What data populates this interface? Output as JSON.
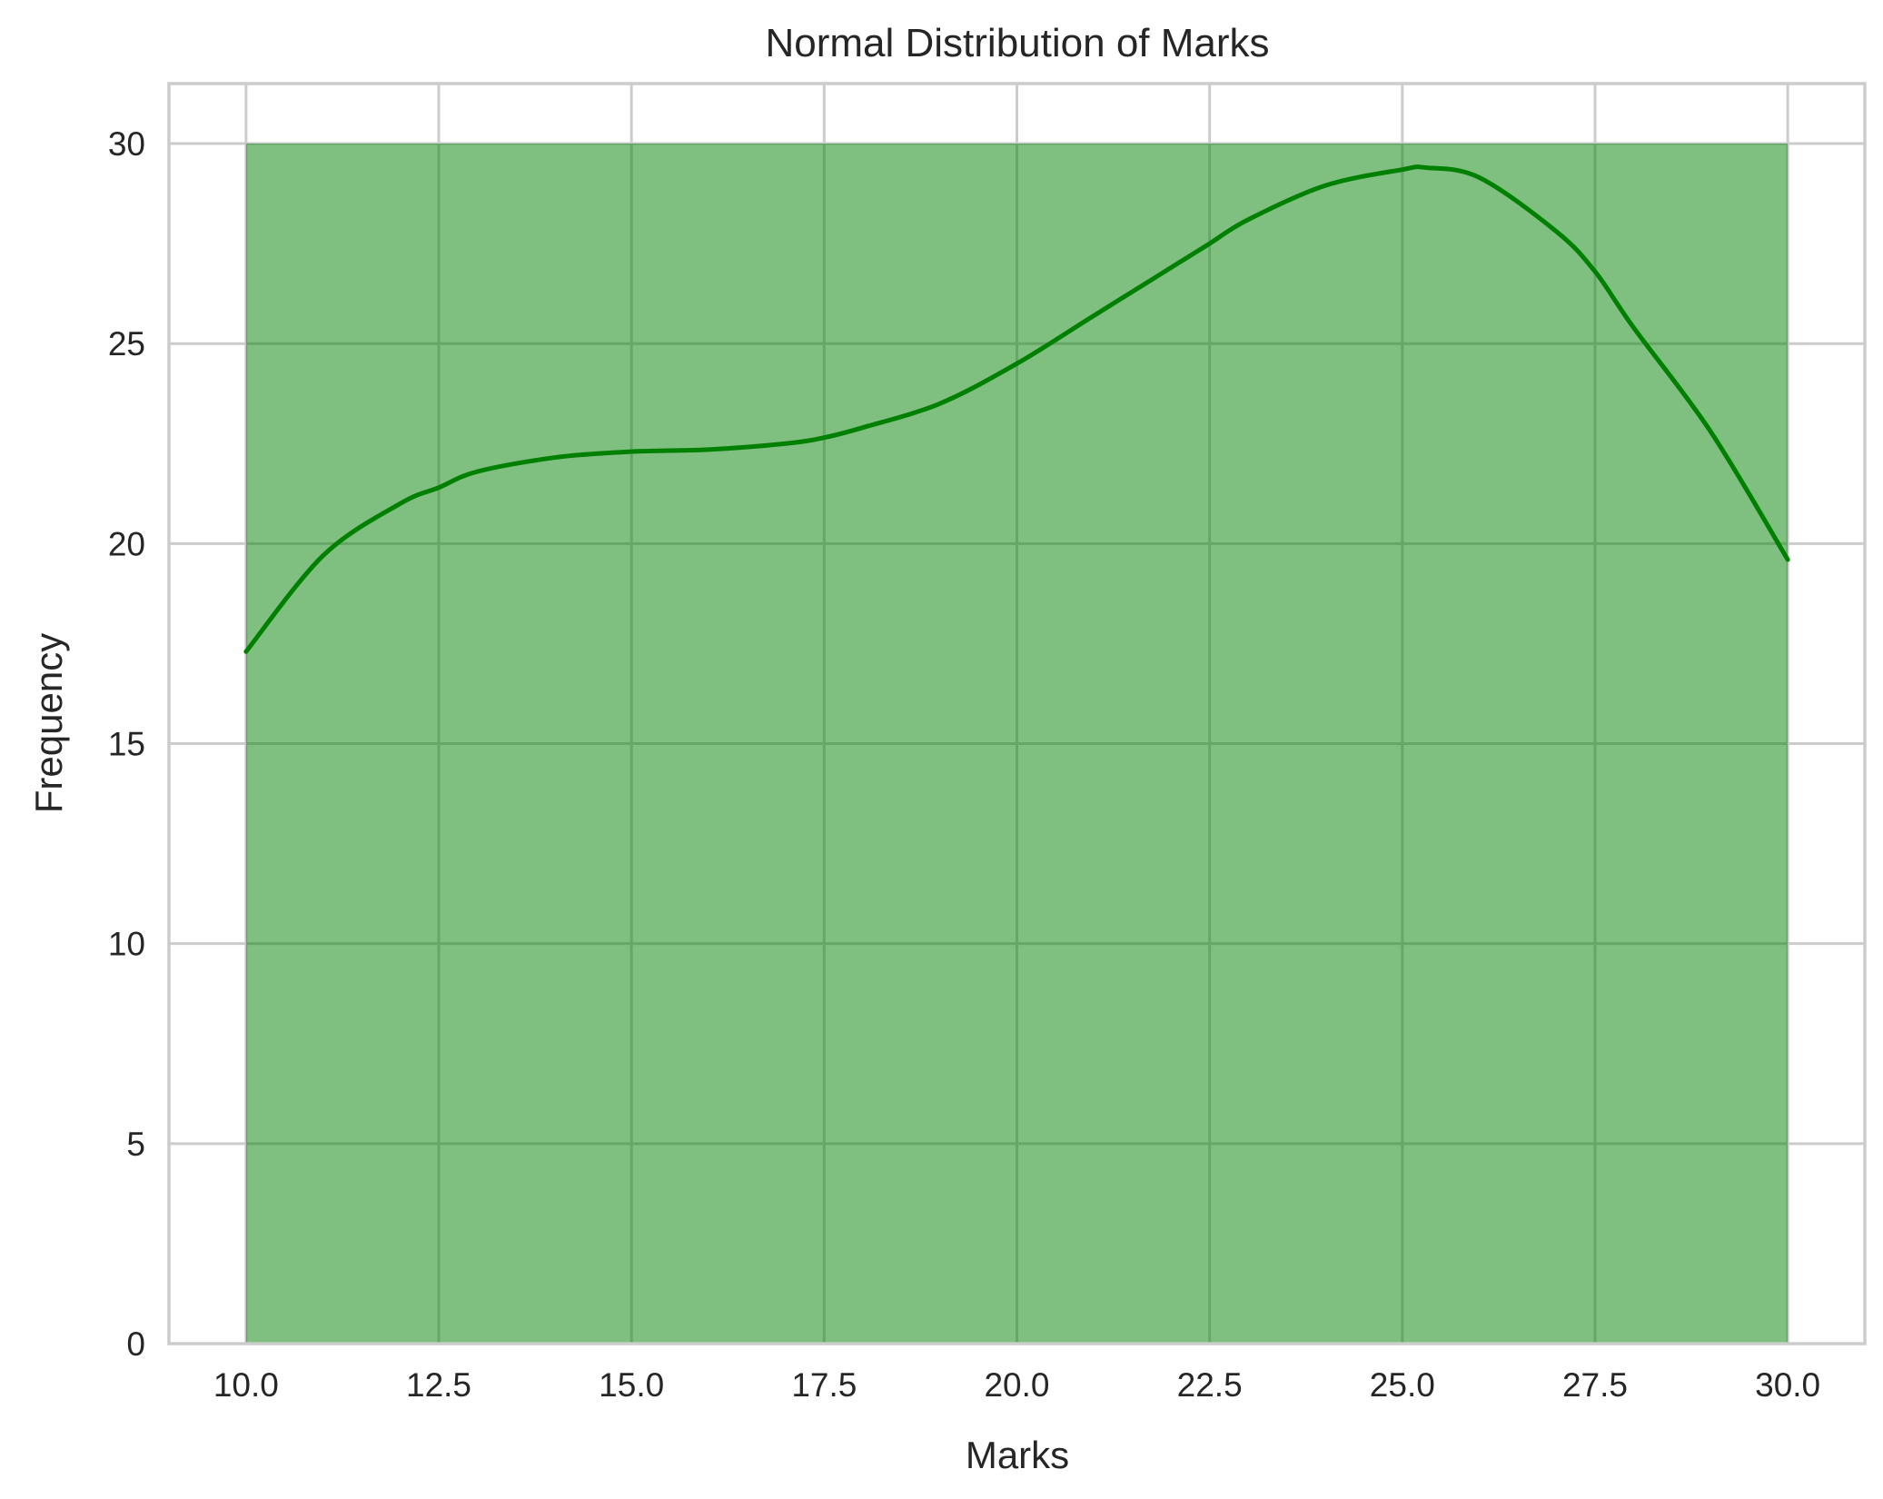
{
  "chart_data": {
    "type": "bar",
    "title": "Normal Distribution of Marks",
    "xlabel": "Marks",
    "ylabel": "Frequency",
    "xlim": [
      9.0,
      31.0
    ],
    "ylim": [
      0,
      31.5
    ],
    "x_ticks": [
      "10.0",
      "12.5",
      "15.0",
      "17.5",
      "20.0",
      "22.5",
      "25.0",
      "27.5",
      "30.0"
    ],
    "y_ticks": [
      "0",
      "5",
      "10",
      "15",
      "20",
      "25",
      "30"
    ],
    "grid": true,
    "bins": [
      {
        "x_start": 10.0,
        "x_end": 30.0,
        "count": 30
      }
    ],
    "kde": {
      "x": [
        10,
        11,
        12,
        12.5,
        13,
        14,
        15,
        16,
        17,
        17.5,
        18,
        19,
        20,
        21,
        22,
        22.5,
        23,
        24,
        25,
        25.3,
        26,
        27,
        27.5,
        28,
        29,
        30
      ],
      "y": [
        17.3,
        19.7,
        21.0,
        21.4,
        21.8,
        22.15,
        22.3,
        22.35,
        22.5,
        22.65,
        22.9,
        23.5,
        24.5,
        25.7,
        26.9,
        27.5,
        28.1,
        28.95,
        29.35,
        29.4,
        29.15,
        27.8,
        26.8,
        25.4,
        22.8,
        19.6
      ]
    },
    "colors": {
      "bar_fill": "#008000",
      "bar_fill_opacity": 0.5,
      "kde_line": "#008000",
      "grid": "#cccccc",
      "spine": "#cccccc",
      "text": "#262626"
    }
  }
}
